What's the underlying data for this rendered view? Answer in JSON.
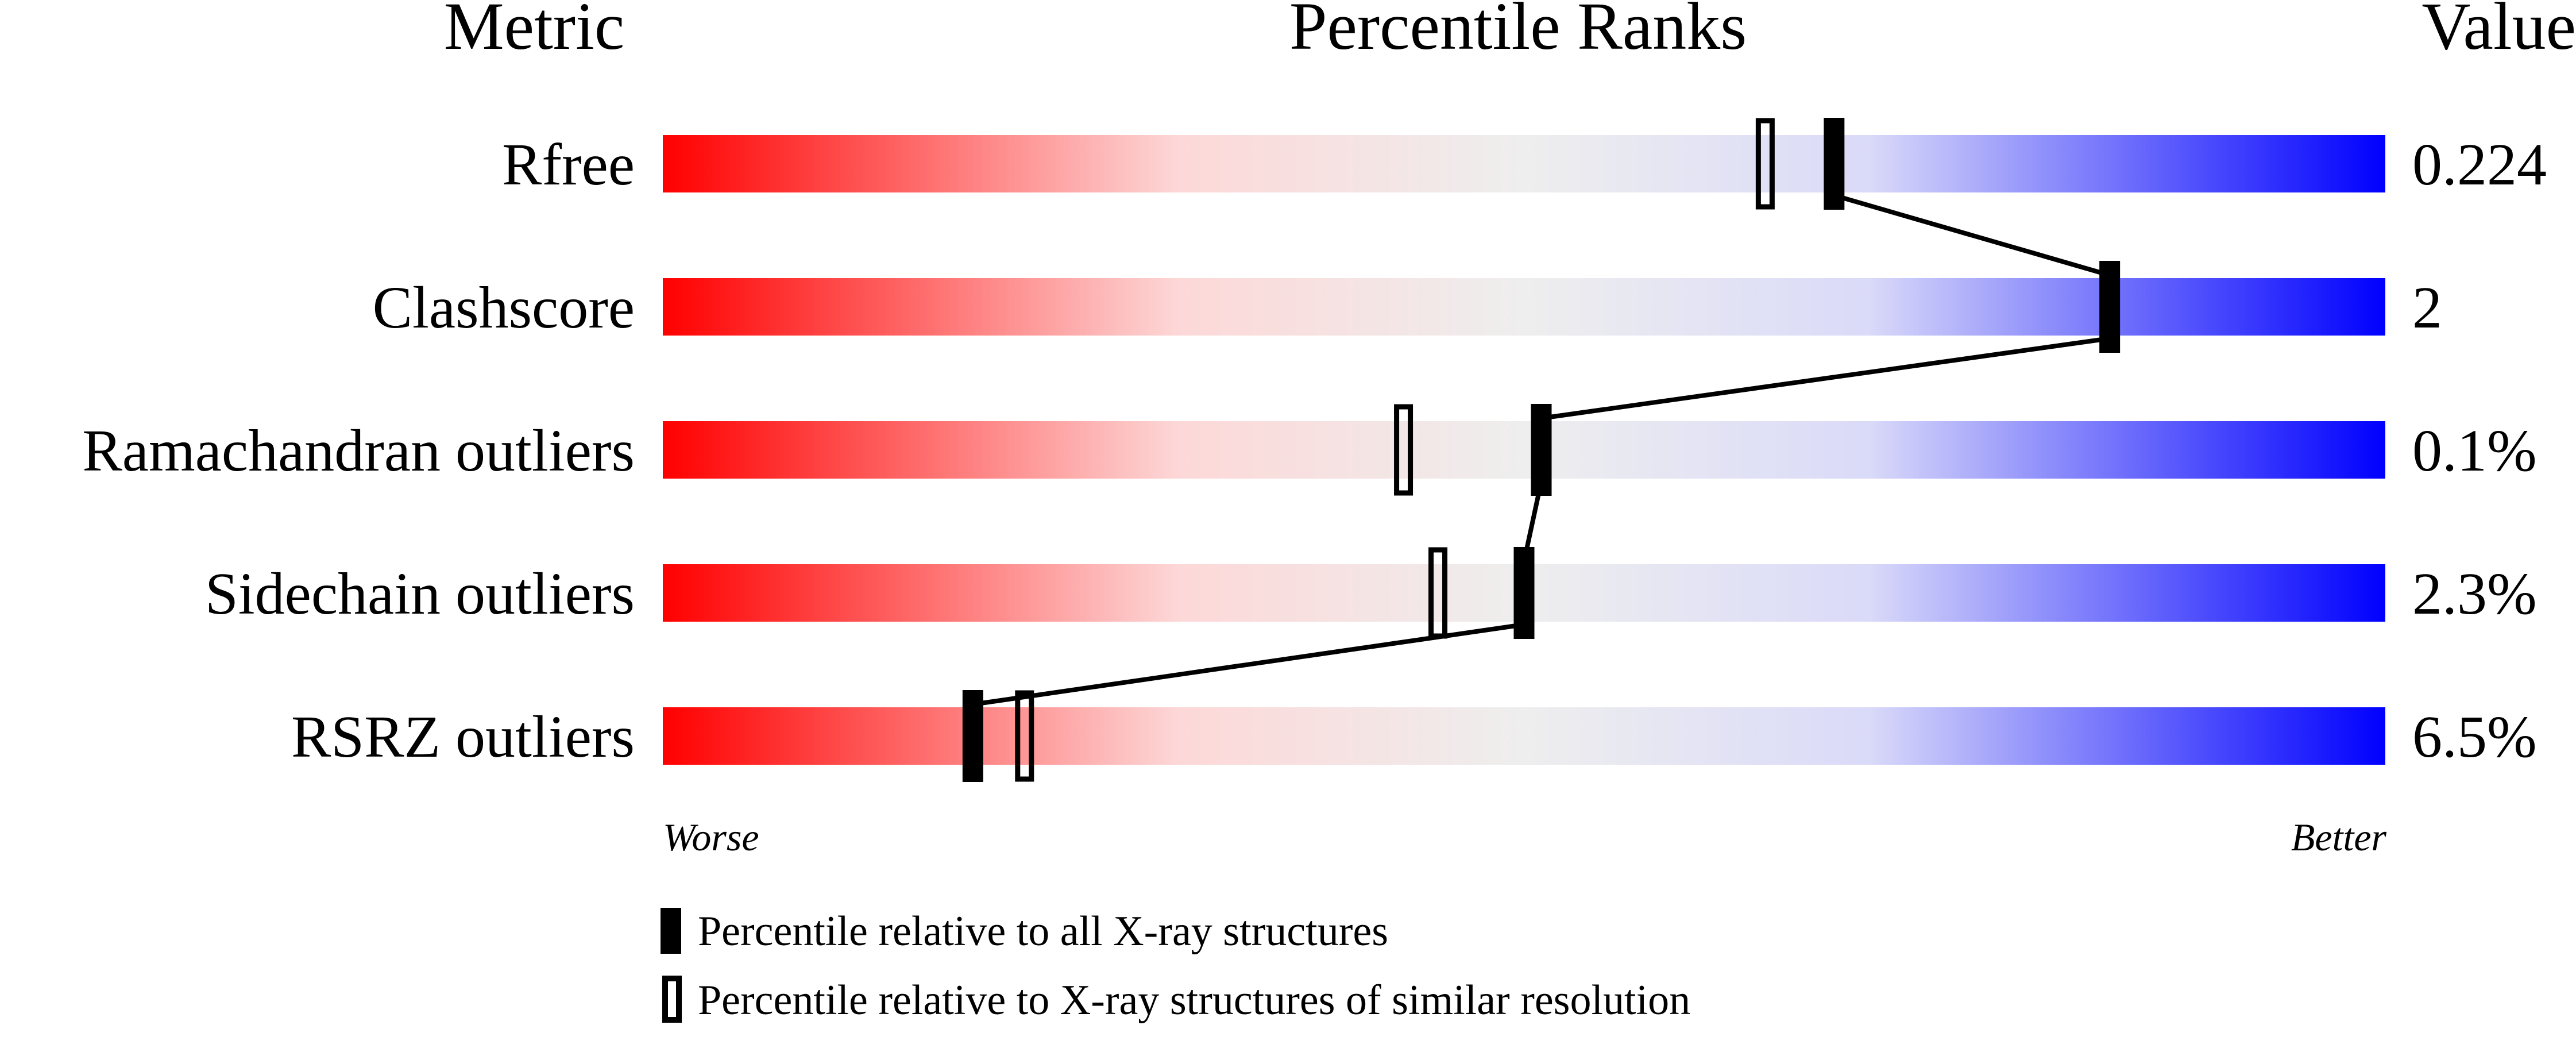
{
  "chart_data": {
    "type": "bar",
    "headers": {
      "metric": "Metric",
      "ranks": "Percentile Ranks",
      "value": "Value"
    },
    "xlim": [
      0,
      100
    ],
    "axis_labels": {
      "left": "Worse",
      "right": "Better"
    },
    "gradient_colors": [
      "#ff0000",
      "#eeeeee",
      "#0000ff"
    ],
    "rows": [
      {
        "metric": "Rfree",
        "value": "0.224",
        "percentile_all": 68,
        "percentile_similar": 64
      },
      {
        "metric": "Clashscore",
        "value": "2",
        "percentile_all": 84,
        "percentile_similar": 84
      },
      {
        "metric": "Ramachandran outliers",
        "value": "0.1%",
        "percentile_all": 51,
        "percentile_similar": 43
      },
      {
        "metric": "Sidechain outliers",
        "value": "2.3%",
        "percentile_all": 50,
        "percentile_similar": 45
      },
      {
        "metric": "RSRZ outliers",
        "value": "6.5%",
        "percentile_all": 18,
        "percentile_similar": 21
      }
    ],
    "legend": [
      {
        "marker": "filled",
        "label": "Percentile relative to all X-ray structures"
      },
      {
        "marker": "open",
        "label": "Percentile relative to X-ray structures of similar resolution"
      }
    ]
  }
}
